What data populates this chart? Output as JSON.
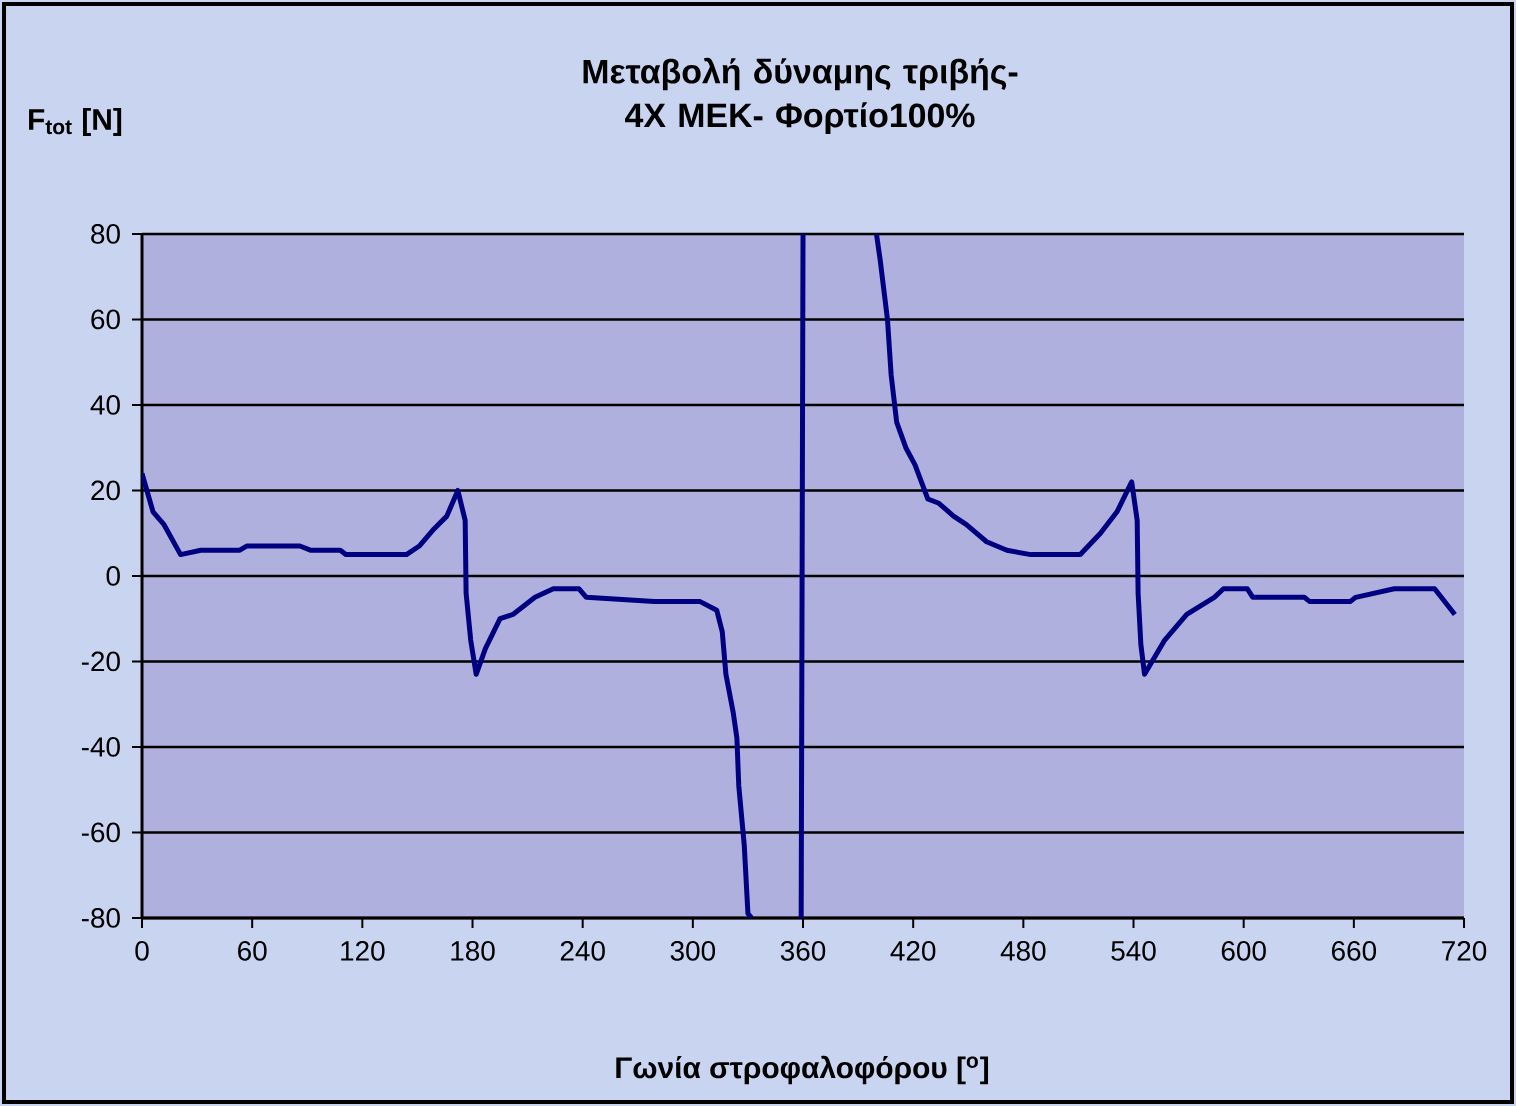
{
  "chart_data": {
    "type": "line",
    "title": "Μεταβολή δύναμης τριβής- 4Χ ΜΕΚ- Φορτίο100%",
    "xlabel": "Γωνία στροφαλοφόρου [$^{o}$]",
    "ylabel": "F$_{tot}$ [N]",
    "xlim": [
      0,
      720
    ],
    "xticks": [
      0,
      60,
      120,
      180,
      240,
      300,
      360,
      420,
      480,
      540,
      600,
      660,
      720
    ],
    "ylim": [
      -80,
      80
    ],
    "yticks": [
      -80,
      -60,
      -40,
      -20,
      0,
      20,
      40,
      60,
      80
    ],
    "grid": "y",
    "marker": "none",
    "line_style": "solid",
    "x": [
      0,
      6,
      12,
      21,
      32,
      53,
      57,
      86,
      92,
      108,
      111,
      144,
      151,
      159,
      166,
      172,
      176,
      176.5,
      179,
      182,
      187,
      195,
      202,
      214,
      224,
      238,
      242,
      279,
      304,
      313,
      316,
      318,
      322,
      324,
      325,
      328,
      330,
      332,
      345,
      359,
      360,
      380,
      400,
      402,
      406,
      408,
      411,
      416,
      421,
      428,
      434,
      442,
      449,
      460,
      471,
      484,
      511,
      522,
      531,
      539,
      542,
      542.5,
      544,
      546,
      557,
      569,
      584,
      589,
      602,
      605,
      633,
      636,
      658,
      661,
      682,
      704,
      715
    ],
    "series": [
      {
        "color": "#000080",
        "values": [
          24,
          15,
          12,
          5,
          6,
          6,
          7,
          7,
          6,
          6,
          5,
          5,
          7,
          11,
          14,
          20,
          13,
          -4,
          -15,
          -23,
          -17,
          -10,
          -9,
          -5,
          -3,
          -3,
          -5,
          -6,
          -6,
          -8,
          -13,
          -23,
          -32,
          -38,
          -49,
          -63,
          -79,
          -80,
          null,
          -80,
          80,
          null,
          80,
          74,
          60,
          47,
          36,
          30,
          26,
          18,
          17,
          14,
          12,
          8,
          6,
          5,
          5,
          10,
          15,
          22,
          13,
          -4,
          -16,
          -23,
          -15,
          -9,
          -5,
          -3,
          -3,
          -5,
          -5,
          -6,
          -6,
          -5,
          -3,
          -3,
          -9
        ]
      }
    ]
  }
}
